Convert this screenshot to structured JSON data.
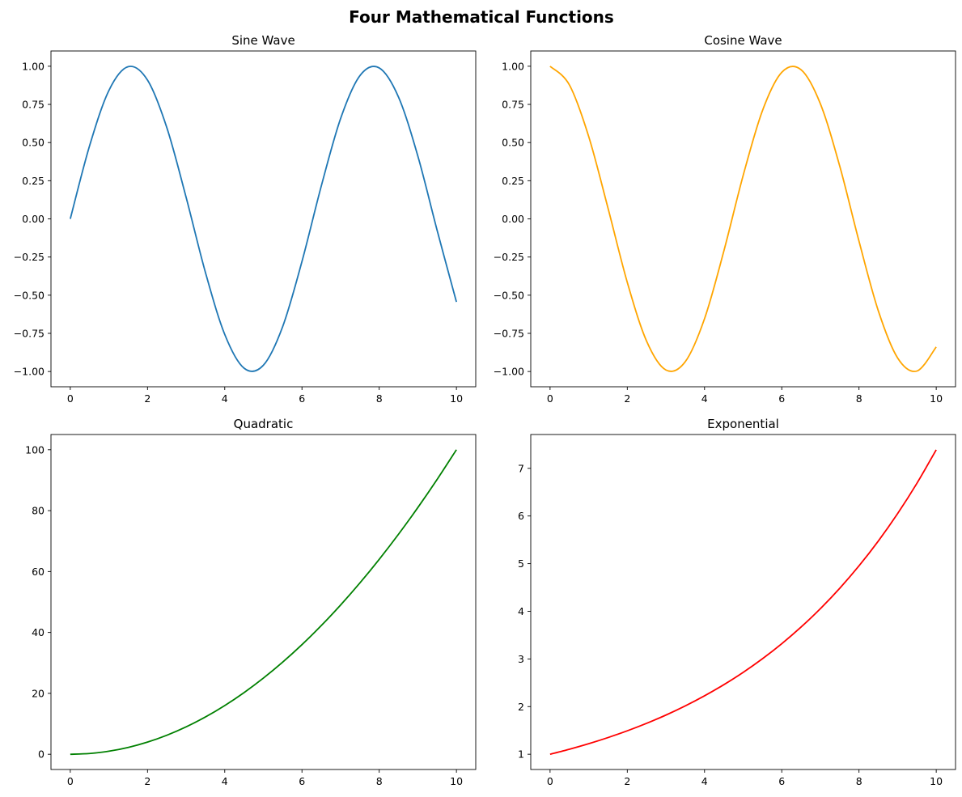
{
  "chart_data": {
    "suptitle": "Four Mathematical Functions",
    "subplots": [
      {
        "type": "line",
        "title": "Sine Wave",
        "color": "#1f77b4",
        "xlim": [
          -0.5,
          10.5
        ],
        "ylim": [
          -1.1,
          1.1
        ],
        "xticks": [
          0,
          2,
          4,
          6,
          8,
          10
        ],
        "xtick_labels": [
          "0",
          "2",
          "4",
          "6",
          "8",
          "10"
        ],
        "yticks": [
          -1,
          -0.75,
          -0.5,
          -0.25,
          0,
          0.25,
          0.5,
          0.75,
          1
        ],
        "ytick_labels": [
          "−1.00",
          "−0.75",
          "−0.50",
          "−0.25",
          "0.00",
          "0.25",
          "0.50",
          "0.75",
          "1.00"
        ],
        "x": [
          0,
          0.5,
          1,
          1.5,
          2,
          2.5,
          3,
          3.5,
          4,
          4.5,
          5,
          5.5,
          6,
          6.5,
          7,
          7.5,
          8,
          8.5,
          9,
          9.5,
          10
        ],
        "y": [
          0,
          0.479,
          0.841,
          0.997,
          0.909,
          0.598,
          0.141,
          -0.351,
          -0.757,
          -0.978,
          -0.959,
          -0.706,
          -0.279,
          0.215,
          0.657,
          0.938,
          0.989,
          0.798,
          0.412,
          -0.075,
          -0.544
        ]
      },
      {
        "type": "line",
        "title": "Cosine Wave",
        "color": "#ffa500",
        "xlim": [
          -0.5,
          10.5
        ],
        "ylim": [
          -1.1,
          1.1
        ],
        "xticks": [
          0,
          2,
          4,
          6,
          8,
          10
        ],
        "xtick_labels": [
          "0",
          "2",
          "4",
          "6",
          "8",
          "10"
        ],
        "yticks": [
          -1,
          -0.75,
          -0.5,
          -0.25,
          0,
          0.25,
          0.5,
          0.75,
          1
        ],
        "ytick_labels": [
          "−1.00",
          "−0.75",
          "−0.50",
          "−0.25",
          "0.00",
          "0.25",
          "0.50",
          "0.75",
          "1.00"
        ],
        "x": [
          0,
          0.5,
          1,
          1.5,
          2,
          2.5,
          3,
          3.5,
          4,
          4.5,
          5,
          5.5,
          6,
          6.5,
          7,
          7.5,
          8,
          8.5,
          9,
          9.5,
          10
        ],
        "y": [
          1,
          0.878,
          0.54,
          0.071,
          -0.416,
          -0.801,
          -0.99,
          -0.936,
          -0.654,
          -0.211,
          0.284,
          0.709,
          0.96,
          0.977,
          0.754,
          0.347,
          -0.146,
          -0.602,
          -0.911,
          -0.997,
          -0.839
        ]
      },
      {
        "type": "line",
        "title": "Quadratic",
        "color": "#008000",
        "xlim": [
          -0.5,
          10.5
        ],
        "ylim": [
          -5,
          105
        ],
        "xticks": [
          0,
          2,
          4,
          6,
          8,
          10
        ],
        "xtick_labels": [
          "0",
          "2",
          "4",
          "6",
          "8",
          "10"
        ],
        "yticks": [
          0,
          20,
          40,
          60,
          80,
          100
        ],
        "ytick_labels": [
          "0",
          "20",
          "40",
          "60",
          "80",
          "100"
        ],
        "x": [
          0,
          0.5,
          1,
          1.5,
          2,
          2.5,
          3,
          3.5,
          4,
          4.5,
          5,
          5.5,
          6,
          6.5,
          7,
          7.5,
          8,
          8.5,
          9,
          9.5,
          10
        ],
        "y": [
          0,
          0.25,
          1,
          2.25,
          4,
          6.25,
          9,
          12.25,
          16,
          20.25,
          25,
          30.25,
          36,
          42.25,
          49,
          56.25,
          64,
          72.25,
          81,
          90.25,
          100
        ]
      },
      {
        "type": "line",
        "title": "Exponential",
        "color": "#ff0000",
        "xlim": [
          -0.5,
          10.5
        ],
        "ylim": [
          0.68,
          7.71
        ],
        "xticks": [
          0,
          2,
          4,
          6,
          8,
          10
        ],
        "xtick_labels": [
          "0",
          "2",
          "4",
          "6",
          "8",
          "10"
        ],
        "yticks": [
          1,
          2,
          3,
          4,
          5,
          6,
          7
        ],
        "ytick_labels": [
          "1",
          "2",
          "3",
          "4",
          "5",
          "6",
          "7"
        ],
        "x": [
          0,
          0.5,
          1,
          1.5,
          2,
          2.5,
          3,
          3.5,
          4,
          4.5,
          5,
          5.5,
          6,
          6.5,
          7,
          7.5,
          8,
          8.5,
          9,
          9.5,
          10
        ],
        "y": [
          1,
          1.105,
          1.221,
          1.35,
          1.492,
          1.649,
          1.822,
          2.014,
          2.226,
          2.46,
          2.718,
          3.004,
          3.32,
          3.669,
          4.055,
          4.482,
          4.953,
          5.474,
          6.05,
          6.686,
          7.389
        ]
      }
    ]
  }
}
